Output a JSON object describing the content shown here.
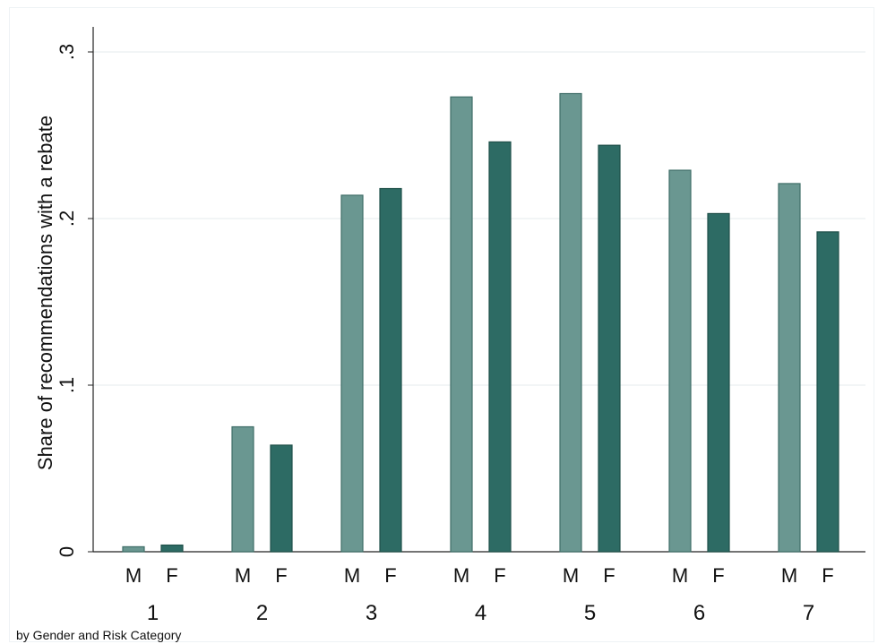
{
  "chart_data": {
    "type": "bar",
    "ylabel": "Share of recommendations with a rebate",
    "xlabel": "",
    "ylim": [
      0,
      0.31
    ],
    "grid": true,
    "yticks": [
      {
        "value": 0,
        "label": "0"
      },
      {
        "value": 0.1,
        "label": ".1"
      },
      {
        "value": 0.2,
        "label": ".2"
      },
      {
        "value": 0.3,
        "label": ".3"
      }
    ],
    "subgroup_labels": [
      "M",
      "F"
    ],
    "categories": [
      "1",
      "2",
      "3",
      "4",
      "5",
      "6",
      "7"
    ],
    "series": [
      {
        "key": "M",
        "color": "#6a9791",
        "stroke": "#3f6e68",
        "values": [
          0.003,
          0.075,
          0.214,
          0.273,
          0.275,
          0.229,
          0.221
        ]
      },
      {
        "key": "F",
        "color": "#2d6b64",
        "stroke": "#1f5049",
        "values": [
          0.004,
          0.064,
          0.218,
          0.246,
          0.244,
          0.203,
          0.192
        ]
      }
    ],
    "note": "by Gender and Risk Category"
  }
}
